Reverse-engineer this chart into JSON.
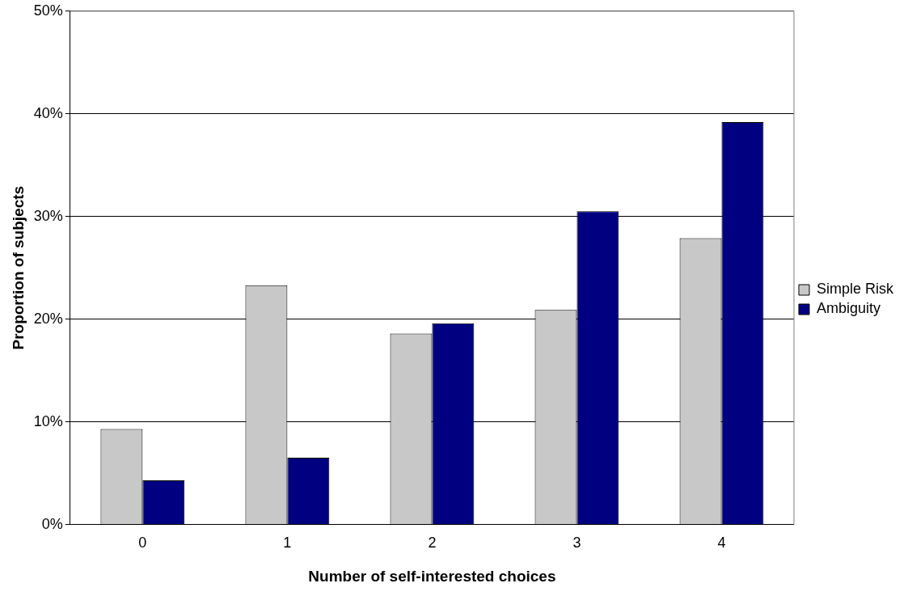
{
  "chart_data": {
    "type": "bar",
    "xlabel": "Number of self-interested choices",
    "ylabel": "Proportion of subjects",
    "categories": [
      "0",
      "1",
      "2",
      "3",
      "4"
    ],
    "series": [
      {
        "name": "Simple Risk",
        "color": "#c8c8c8",
        "values": [
          9.3,
          23.3,
          18.6,
          20.9,
          27.9
        ]
      },
      {
        "name": "Ambiguity",
        "color": "#000080",
        "values": [
          4.3,
          6.5,
          19.6,
          30.5,
          39.2
        ]
      }
    ],
    "ylim": [
      0,
      50
    ],
    "yticks": [
      {
        "value": 0,
        "label": "0%"
      },
      {
        "value": 10,
        "label": "10%"
      },
      {
        "value": 20,
        "label": "20%"
      },
      {
        "value": 30,
        "label": "30%"
      },
      {
        "value": 40,
        "label": "40%"
      },
      {
        "value": 50,
        "label": "50%"
      }
    ],
    "grid": "y",
    "legend": "right"
  }
}
